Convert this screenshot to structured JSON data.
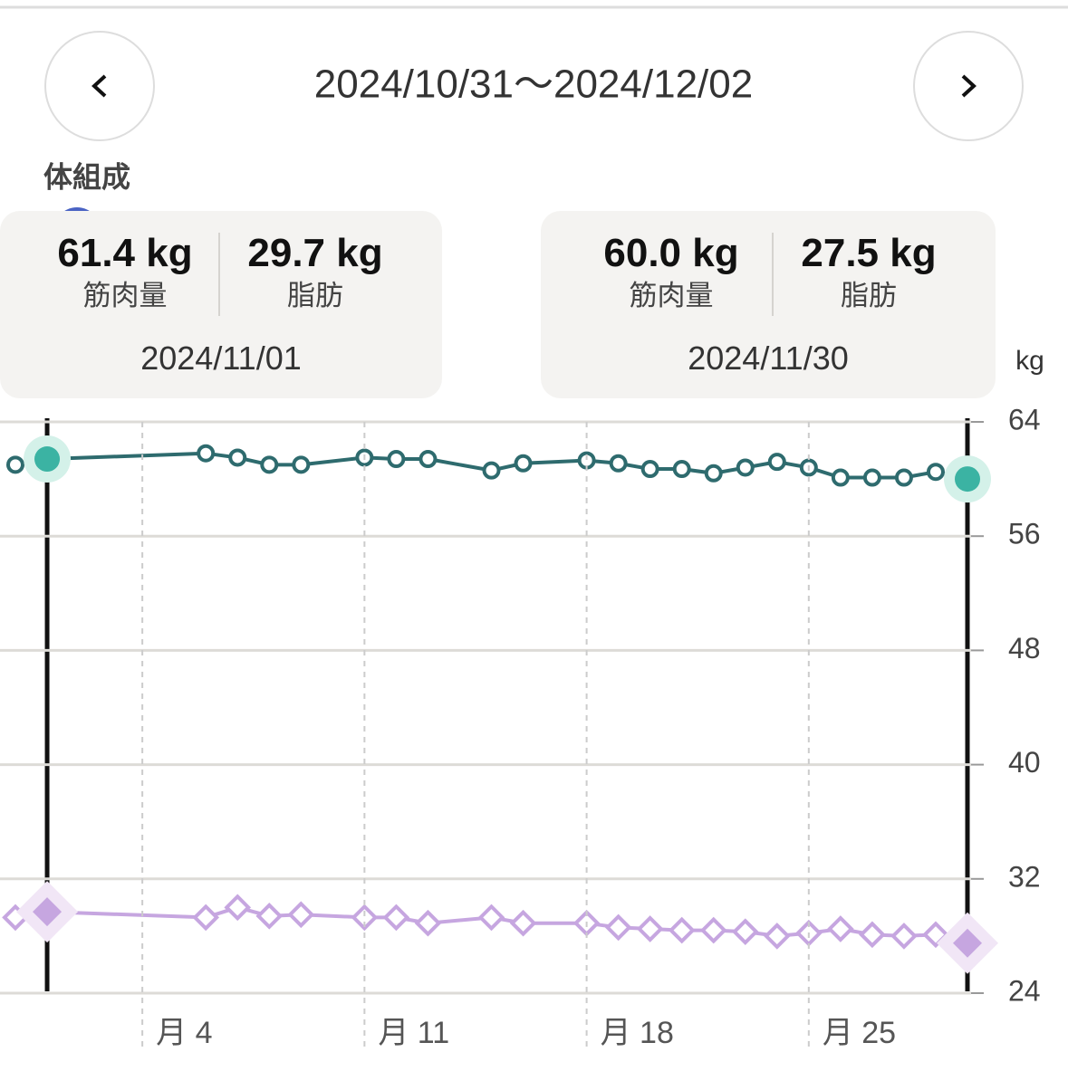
{
  "header": {
    "date_range": "2024/10/31〜2024/12/02",
    "section_title": "体組成"
  },
  "tooltips": [
    {
      "muscle": "61.4 kg",
      "muscle_label": "筋肉量",
      "fat": "29.7 kg",
      "fat_label": "脂肪",
      "date": "2024/11/01"
    },
    {
      "muscle": "60.0 kg",
      "muscle_label": "筋肉量",
      "fat": "27.5 kg",
      "fat_label": "脂肪",
      "date": "2024/11/30"
    }
  ],
  "chart_data": {
    "type": "line",
    "ylabel": "kg",
    "x": [
      "2024/10/31",
      "2024/11/01",
      "2024/11/06",
      "2024/11/07",
      "2024/11/08",
      "2024/11/09",
      "2024/11/11",
      "2024/11/12",
      "2024/11/13",
      "2024/11/15",
      "2024/11/16",
      "2024/11/18",
      "2024/11/19",
      "2024/11/20",
      "2024/11/21",
      "2024/11/22",
      "2024/11/23",
      "2024/11/24",
      "2024/11/25",
      "2024/11/26",
      "2024/11/27",
      "2024/11/28",
      "2024/11/29",
      "2024/11/30"
    ],
    "series": [
      {
        "color": "#2e6b6e",
        "marker": "circle",
        "values": [
          61.0,
          61.4,
          61.8,
          61.5,
          61.0,
          61.0,
          61.5,
          61.4,
          61.4,
          60.6,
          61.1,
          61.3,
          61.1,
          60.7,
          60.7,
          60.4,
          60.8,
          61.2,
          60.8,
          60.1,
          60.1,
          60.1,
          60.5,
          60.0
        ]
      },
      {
        "color": "#c6a6e0",
        "marker": "diamond",
        "values": [
          29.3,
          29.7,
          29.3,
          30.0,
          29.4,
          29.5,
          29.3,
          29.3,
          28.9,
          29.3,
          28.9,
          28.9,
          28.6,
          28.5,
          28.4,
          28.4,
          28.3,
          28.0,
          28.2,
          28.5,
          28.1,
          28.0,
          28.1,
          27.5
        ]
      }
    ],
    "xlim": [
      "2024/10/31",
      "2024/11/30"
    ],
    "xticks": [
      {
        "value": "2024/11/04",
        "label": "月 4"
      },
      {
        "value": "2024/11/11",
        "label": "月 11"
      },
      {
        "value": "2024/11/18",
        "label": "月 18"
      },
      {
        "value": "2024/11/25",
        "label": "月 25"
      }
    ],
    "ylim": [
      24,
      64
    ],
    "yticks": [
      24,
      32,
      40,
      48,
      56,
      64
    ],
    "grid": true
  }
}
